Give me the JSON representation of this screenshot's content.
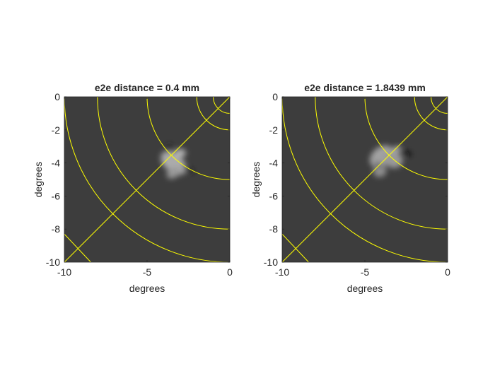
{
  "chart_data": [
    {
      "type": "heatmap",
      "title": "e2e distance = 0.4 mm",
      "xlabel": "degrees",
      "ylabel": "degrees",
      "xlim": [
        -10,
        0
      ],
      "ylim": [
        -10,
        0
      ],
      "xticks": [
        -10,
        -5,
        0
      ],
      "yticks": [
        0,
        -2,
        -4,
        -6,
        -8,
        -10
      ],
      "xtick_labels": [
        "-10",
        "-5",
        "0"
      ],
      "ytick_labels": [
        "0",
        "-2",
        "-4",
        "-6",
        "-8",
        "-10"
      ],
      "background_color": "#3d3d3d",
      "overlay_color": "#ffff00",
      "overlay_arcs_radius_deg": [
        1,
        2,
        5,
        8,
        10
      ],
      "overlay_lines": [
        {
          "from": [
            0,
            0
          ],
          "to": [
            -10,
            -10
          ]
        },
        {
          "from": [
            -10,
            -8.3
          ],
          "to": [
            -8.4,
            -10
          ]
        }
      ],
      "blobs": [
        {
          "x": -3.9,
          "y": -4.0,
          "sx": 0.28,
          "sy": 0.16,
          "angle": 40,
          "value": -1.0
        },
        {
          "x": -3.4,
          "y": -4.0,
          "sx": 0.9,
          "sy": 0.55,
          "angle": -40,
          "value": 0.6
        },
        {
          "x": -3.0,
          "y": -3.4,
          "sx": 0.35,
          "sy": 0.25,
          "angle": 0,
          "value": 0.65
        },
        {
          "x": -3.4,
          "y": -4.6,
          "sx": 0.45,
          "sy": 0.3,
          "angle": 30,
          "value": 0.5
        },
        {
          "x": -2.5,
          "y": -4.4,
          "sx": 0.35,
          "sy": 0.12,
          "angle": -30,
          "value": -0.45
        },
        {
          "x": -3.7,
          "y": -3.1,
          "sx": 0.25,
          "sy": 0.15,
          "angle": 60,
          "value": -0.35
        }
      ]
    },
    {
      "type": "heatmap",
      "title": "e2e distance = 1.8439 mm",
      "xlabel": "degrees",
      "ylabel": "degrees",
      "xlim": [
        -10,
        0
      ],
      "ylim": [
        -10,
        0
      ],
      "xticks": [
        -10,
        -5,
        0
      ],
      "yticks": [
        0,
        -2,
        -4,
        -6,
        -8,
        -10
      ],
      "xtick_labels": [
        "-10",
        "-5",
        "0"
      ],
      "ytick_labels": [
        "0",
        "-2",
        "-4",
        "-6",
        "-8",
        "-10"
      ],
      "background_color": "#3d3d3d",
      "overlay_color": "#ffff00",
      "overlay_arcs_radius_deg": [
        1,
        2,
        5,
        8,
        10
      ],
      "overlay_lines": [
        {
          "from": [
            0,
            0
          ],
          "to": [
            -10,
            -10
          ]
        },
        {
          "from": [
            -10,
            -8.3
          ],
          "to": [
            -8.4,
            -10
          ]
        }
      ],
      "blobs": [
        {
          "x": -4.0,
          "y": -3.6,
          "sx": 0.8,
          "sy": 0.55,
          "angle": 40,
          "value": 0.55
        },
        {
          "x": -3.3,
          "y": -3.8,
          "sx": 0.6,
          "sy": 0.5,
          "angle": -20,
          "value": 0.5
        },
        {
          "x": -4.1,
          "y": -4.5,
          "sx": 0.4,
          "sy": 0.35,
          "angle": 10,
          "value": 0.45
        },
        {
          "x": -4.2,
          "y": -4.1,
          "sx": 0.22,
          "sy": 0.1,
          "angle": -65,
          "value": -1.0
        },
        {
          "x": -2.5,
          "y": -3.4,
          "sx": 0.35,
          "sy": 0.12,
          "angle": -20,
          "value": -0.8
        },
        {
          "x": -3.1,
          "y": -3.2,
          "sx": 0.3,
          "sy": 0.2,
          "angle": 30,
          "value": 0.6
        }
      ]
    }
  ]
}
